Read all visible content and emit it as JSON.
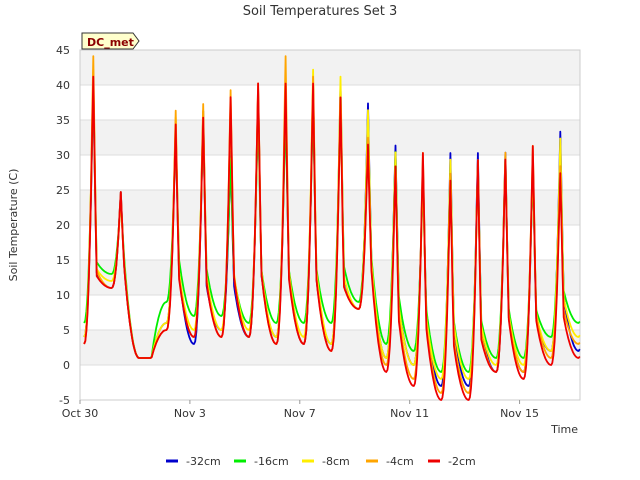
{
  "chart_data": {
    "type": "line",
    "title": "Soil Temperatures Set 3",
    "xlabel": "Time",
    "ylabel": "Soil Temperature (C)",
    "site_label": "DC_met",
    "xlim": [
      0,
      18.2
    ],
    "ylim": [
      -5,
      45
    ],
    "y_ticks": [
      -5,
      0,
      5,
      10,
      15,
      20,
      25,
      30,
      35,
      40,
      45
    ],
    "x_ticks": [
      {
        "x": 0,
        "label": "Oct 30"
      },
      {
        "x": 4,
        "label": "Nov 3"
      },
      {
        "x": 8,
        "label": "Nov 7"
      },
      {
        "x": 12,
        "label": "Nov 11"
      },
      {
        "x": 16,
        "label": "Nov 15"
      }
    ],
    "grid": "horizontal-bands",
    "legend_position": "bottom",
    "series": [
      {
        "name": "-32cm",
        "color": "#0000cc",
        "daily_max": [
          41,
          25,
          1,
          35,
          37,
          31,
          40,
          40,
          41,
          41,
          38,
          32,
          29,
          31,
          31,
          31,
          30,
          34,
          28
        ],
        "daily_min": [
          4,
          11,
          1,
          6,
          3,
          5,
          4,
          4,
          3,
          3,
          8,
          1,
          0,
          -3,
          -3,
          -1,
          -1,
          2,
          2
        ]
      },
      {
        "name": "-16cm",
        "color": "#00ee00",
        "daily_max": [
          41,
          24,
          1,
          34,
          35,
          30,
          37,
          37,
          38,
          39,
          36,
          31,
          27,
          29,
          29,
          30,
          29,
          31,
          26
        ],
        "daily_min": [
          6,
          13,
          1,
          9,
          7,
          7,
          6,
          6,
          6,
          6,
          9,
          3,
          2,
          -1,
          -1,
          1,
          1,
          4,
          6
        ]
      },
      {
        "name": "-8cm",
        "color": "#ffee00",
        "daily_max": [
          43,
          24,
          1,
          36,
          37,
          38,
          40,
          42,
          43,
          42,
          37,
          31,
          28,
          30,
          29,
          30,
          30,
          33,
          28
        ],
        "daily_min": [
          4,
          12,
          1,
          6,
          5,
          5,
          5,
          4,
          4,
          3,
          8,
          1,
          0,
          -2,
          -2,
          0,
          0,
          2,
          4
        ]
      },
      {
        "name": "-4cm",
        "color": "#ffa500",
        "daily_max": [
          45,
          25,
          1,
          37,
          38,
          40,
          41,
          45,
          42,
          39,
          33,
          29,
          31,
          28,
          30,
          31,
          32,
          29,
          22
        ],
        "daily_min": [
          3,
          11,
          1,
          5,
          4,
          4,
          4,
          3,
          3,
          2,
          8,
          0,
          -2,
          -4,
          -4,
          -1,
          -1,
          1,
          3
        ]
      },
      {
        "name": "-2cm",
        "color": "#ee0000",
        "daily_max": [
          42,
          25,
          1,
          35,
          36,
          39,
          41,
          41,
          41,
          39,
          32,
          29,
          31,
          27,
          30,
          30,
          32,
          28,
          22
        ],
        "daily_min": [
          3,
          11,
          1,
          5,
          4,
          4,
          4,
          3,
          3,
          2,
          8,
          -1,
          -3,
          -5,
          -5,
          -1,
          -2,
          0,
          1
        ]
      }
    ]
  }
}
